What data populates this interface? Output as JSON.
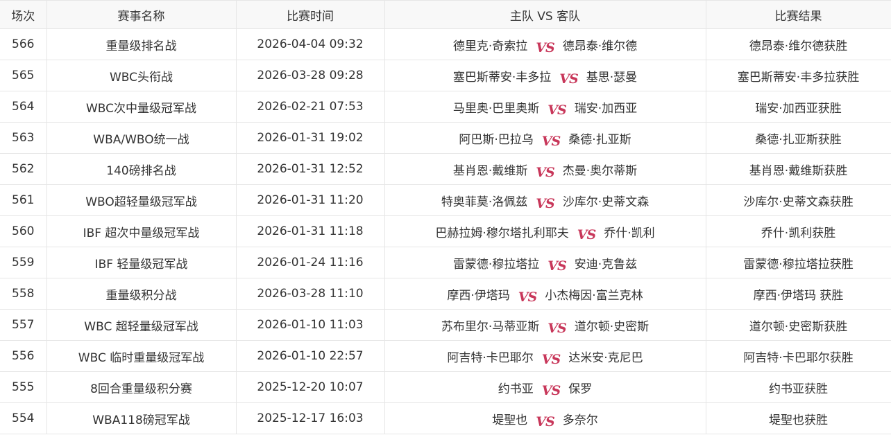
{
  "headers": [
    "场次",
    "赛事名称",
    "比赛时间",
    "主队 VS 客队",
    "比赛结果"
  ],
  "vs_label": "VS",
  "vs_color": "#c8375a",
  "rows": [
    {
      "no": "566",
      "event": "重量级排名战",
      "time": "2026-04-04 09:32",
      "home": "德里克·奇索拉",
      "away": "德昂泰·维尔德",
      "result": "德昂泰·维尔德获胜"
    },
    {
      "no": "565",
      "event": "WBC头衔战",
      "time": "2026-03-28 09:28",
      "home": "塞巴斯蒂安·丰多拉",
      "away": "基思·瑟曼",
      "result": "塞巴斯蒂安·丰多拉获胜"
    },
    {
      "no": "564",
      "event": "WBC次中量级冠军战",
      "time": "2026-02-21 07:53",
      "home": "马里奥·巴里奥斯",
      "away": "瑞安·加西亚",
      "result": "瑞安·加西亚获胜"
    },
    {
      "no": "563",
      "event": "WBA/WBO统一战",
      "time": "2026-01-31 19:02",
      "home": "阿巴斯·巴拉乌",
      "away": "桑德·扎亚斯",
      "result": "桑德·扎亚斯获胜"
    },
    {
      "no": "562",
      "event": "140磅排名战",
      "time": "2026-01-31 12:52",
      "home": "基肖恩·戴维斯",
      "away": "杰曼·奥尔蒂斯",
      "result": "基肖恩·戴维斯获胜"
    },
    {
      "no": "561",
      "event": "WBO超轻量级冠军战",
      "time": "2026-01-31 11:20",
      "home": "特奥菲莫·洛佩兹",
      "away": "沙库尔·史蒂文森",
      "result": "沙库尔·史蒂文森获胜"
    },
    {
      "no": "560",
      "event": "IBF 超次中量级冠军战",
      "time": "2026-01-31 11:18",
      "home": "巴赫拉姆·穆尔塔扎利耶夫",
      "away": "乔什·凯利",
      "result": "乔什·凯利获胜"
    },
    {
      "no": "559",
      "event": "IBF 轻量级冠军战",
      "time": "2026-01-24 11:16",
      "home": "雷蒙德·穆拉塔拉",
      "away": "安迪·克鲁兹",
      "result": "雷蒙德·穆拉塔拉获胜"
    },
    {
      "no": "558",
      "event": "重量级积分战",
      "time": "2026-03-28 11:10",
      "home": "摩西·伊塔玛",
      "away": "小杰梅因·富兰克林",
      "result": "摩西·伊塔玛 获胜"
    },
    {
      "no": "557",
      "event": "WBC 超轻量级冠军战",
      "time": "2026-01-10 11:03",
      "home": "苏布里尔·马蒂亚斯",
      "away": "道尔顿·史密斯",
      "result": "道尔顿·史密斯获胜"
    },
    {
      "no": "556",
      "event": "WBC 临时重量级冠军战",
      "time": "2026-01-10 22:57",
      "home": "阿吉特·卡巴耶尔",
      "away": "达米安·克尼巴",
      "result": "阿吉特·卡巴耶尔获胜"
    },
    {
      "no": "555",
      "event": "8回合重量级积分赛",
      "time": "2025-12-20 10:07",
      "home": "约书亚",
      "away": "保罗",
      "result": "约书亚获胜"
    },
    {
      "no": "554",
      "event": "WBA118磅冠军战",
      "time": "2025-12-17 16:03",
      "home": "堤聖也",
      "away": "多奈尔",
      "result": "堤聖也获胜"
    }
  ]
}
